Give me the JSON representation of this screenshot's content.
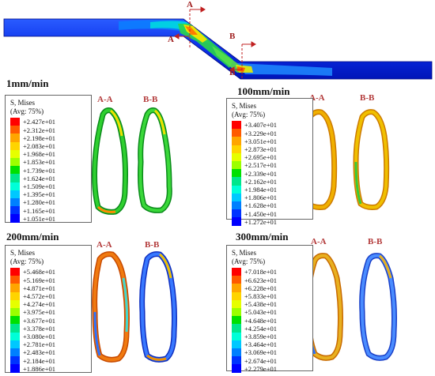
{
  "pipe": {
    "section_a": "A",
    "section_b": "B"
  },
  "panels": [
    {
      "key": "p1",
      "rate": "1mm/min",
      "legend_title": "S, Mises",
      "legend_avg": "(Avg: 75%)",
      "values": [
        "+2.427e+01",
        "+2.312e+01",
        "+2.198e+01",
        "+2.083e+01",
        "+1.968e+01",
        "+1.853e+01",
        "+1.739e+01",
        "+1.624e+01",
        "+1.509e+01",
        "+1.395e+01",
        "+1.280e+01",
        "+1.165e+01",
        "+1.051e+01"
      ],
      "section_labels": [
        "A-A",
        "B-B"
      ]
    },
    {
      "key": "p2",
      "rate": "100mm/min",
      "legend_title": "S, Mises",
      "legend_avg": "(Avg: 75%)",
      "values": [
        "+3.407e+01",
        "+3.229e+01",
        "+3.051e+01",
        "+2.873e+01",
        "+2.695e+01",
        "+2.517e+01",
        "+2.339e+01",
        "+2.162e+01",
        "+1.984e+01",
        "+1.806e+01",
        "+1.628e+01",
        "+1.450e+01",
        "+1.272e+01"
      ],
      "section_labels": [
        "A-A",
        "B-B"
      ]
    },
    {
      "key": "p3",
      "rate": "200mm/min",
      "legend_title": "S, Mises",
      "legend_avg": "(Avg: 75%)",
      "values": [
        "+5.468e+01",
        "+5.169e+01",
        "+4.871e+01",
        "+4.572e+01",
        "+4.274e+01",
        "+3.975e+01",
        "+3.677e+01",
        "+3.378e+01",
        "+3.080e+01",
        "+2.781e+01",
        "+2.483e+01",
        "+2.184e+01",
        "+1.886e+01"
      ],
      "section_labels": [
        "A-A",
        "B-B"
      ]
    },
    {
      "key": "p4",
      "rate": "300mm/min",
      "legend_title": "S, Mises",
      "legend_avg": "(Avg: 75%)",
      "values": [
        "+7.018e+01",
        "+6.623e+01",
        "+6.228e+01",
        "+5.833e+01",
        "+5.438e+01",
        "+5.043e+01",
        "+4.648e+01",
        "+4.254e+01",
        "+3.859e+01",
        "+3.464e+01",
        "+3.069e+01",
        "+2.674e+01",
        "+2.279e+01"
      ],
      "section_labels": [
        "A-A",
        "B-B"
      ]
    }
  ],
  "colorbar": [
    "#ff0000",
    "#ff5a00",
    "#ffa500",
    "#ffd400",
    "#e6ff00",
    "#9cff00",
    "#00e000",
    "#00e68c",
    "#00ffd8",
    "#00c8ff",
    "#0080ff",
    "#0033ff",
    "#0000ff"
  ]
}
